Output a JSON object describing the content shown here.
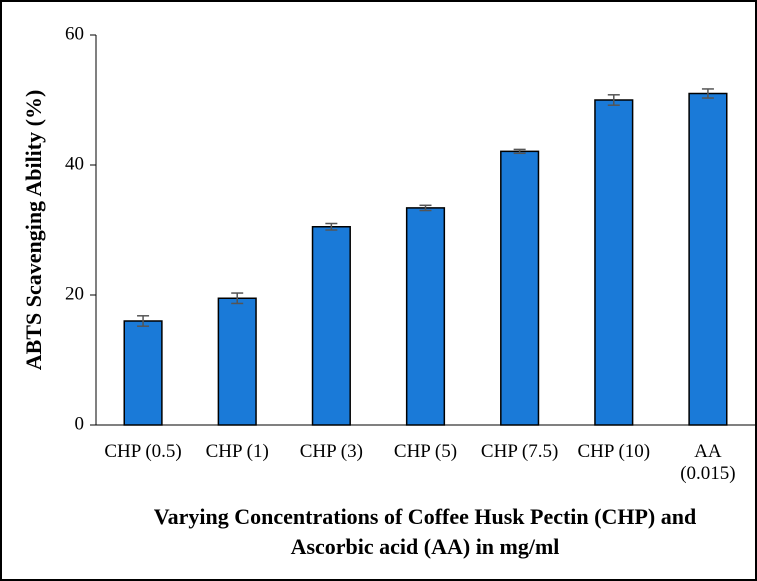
{
  "chart_data": {
    "type": "bar",
    "ylabel": "ABTS Scavenging Ability (%)",
    "xlabel": "Varying Concentrations of Coffee Husk Pectin (CHP) and Ascorbic acid (AA) in mg/ml",
    "categories": [
      "CHP (0.5)",
      "CHP (1)",
      "CHP (3)",
      "CHP (5)",
      "CHP (7.5)",
      "CHP (10)",
      "AA (0.015)"
    ],
    "values": [
      16,
      19.5,
      30.5,
      33.4,
      42.1,
      50,
      51
    ],
    "errors": [
      0.8,
      0.8,
      0.5,
      0.4,
      0.3,
      0.8,
      0.7
    ],
    "color": "#1a7ad8",
    "error_color": "#555555",
    "ylim": [
      0,
      60
    ],
    "yticks": [
      0,
      20,
      40,
      60
    ],
    "grid": false
  }
}
